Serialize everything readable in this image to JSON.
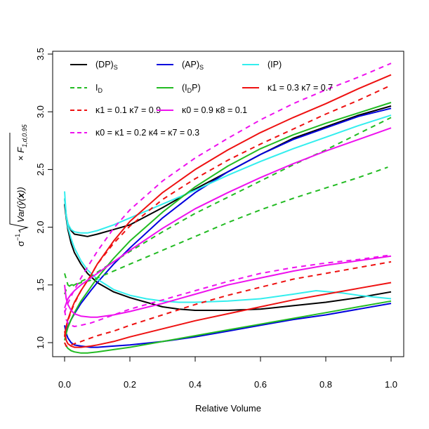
{
  "chart_data": {
    "type": "line",
    "title": "",
    "xlabel": "Relative Volume",
    "ylabel": "σ⁻¹√(Var(ŷ(x)) × F1,d,0.95)",
    "ylabel_parts": {
      "sigma": "σ",
      "sigma_exp": "−1",
      "radicand_a": "Var(",
      "radicand_yhat": "ŷ",
      "radicand_b": "(",
      "radicand_x": "x",
      "radicand_c": "))",
      "times": " × ",
      "F": "F",
      "F_sub": "1,d,0.95"
    },
    "xlim": [
      0,
      1
    ],
    "ylim": [
      1.0,
      3.5
    ],
    "x_ticks": [
      0.0,
      0.2,
      0.4,
      0.6,
      0.8,
      1.0
    ],
    "x_tick_labels": [
      "0.0",
      "0.2",
      "0.4",
      "0.6",
      "0.8",
      "1.0"
    ],
    "y_ticks": [
      1.0,
      1.5,
      2.0,
      2.5,
      3.0,
      3.5
    ],
    "y_tick_labels": [
      "1.0",
      "1.5",
      "2.0",
      "2.5",
      "3.0",
      "3.5"
    ],
    "grid": false,
    "legend_position": "top-left",
    "legend": [
      {
        "key": "dps",
        "main": "(DP)",
        "sub": "S",
        "color": "#000000",
        "dash": false
      },
      {
        "key": "aps",
        "main": "(AP)",
        "sub": "S",
        "color": "#0000dd",
        "dash": false
      },
      {
        "key": "ip",
        "main": "(IP)",
        "sub": "",
        "color": "#33eeee",
        "dash": false
      },
      {
        "key": "id",
        "main": "I",
        "sub": "D",
        "color": "#22bb22",
        "dash": true
      },
      {
        "key": "idp",
        "main": "(I",
        "sub": "D",
        "after": "P)",
        "color": "#22bb22",
        "dash": false
      },
      {
        "key": "k1k7a",
        "main": "κ1 = 0.3 κ7 = 0.7",
        "sub": "",
        "color": "#ee1111",
        "dash": false
      },
      {
        "key": "k1k7b",
        "main": "κ1 = 0.1 κ7 = 0.9",
        "sub": "",
        "color": "#ee1111",
        "dash": true
      },
      {
        "key": "k0k8",
        "main": "κ0 = 0.9 κ8 = 0.1",
        "sub": "",
        "color": "#ee11ee",
        "dash": false
      },
      {
        "key": "k0k1k4k7",
        "main": "κ0 = κ1 = 0.2 κ4 = κ7 = 0.3",
        "sub": "",
        "color": "#ee11ee",
        "dash": true
      }
    ],
    "series": [
      {
        "name": "(DP)S",
        "color": "#000000",
        "dash": false,
        "curves": [
          {
            "x": [
              0.0,
              0.005,
              0.01,
              0.02,
              0.03,
              0.05,
              0.07,
              0.1,
              0.15,
              0.2,
              0.3,
              0.4,
              0.5,
              0.6,
              0.7,
              0.8,
              0.9,
              1.0
            ],
            "y": [
              2.25,
              2.1,
              2.03,
              1.97,
              1.94,
              1.93,
              1.92,
              1.94,
              1.98,
              2.02,
              2.17,
              2.33,
              2.48,
              2.63,
              2.77,
              2.87,
              2.97,
              3.05
            ]
          },
          {
            "x": [
              0.0,
              0.005,
              0.01,
              0.02,
              0.03,
              0.05,
              0.07,
              0.1,
              0.15,
              0.2,
              0.25,
              0.3,
              0.35,
              0.4,
              0.5,
              0.6,
              0.7,
              0.8,
              0.9,
              1.0
            ],
            "y": [
              2.2,
              2.08,
              1.98,
              1.86,
              1.78,
              1.68,
              1.6,
              1.52,
              1.44,
              1.39,
              1.35,
              1.31,
              1.29,
              1.28,
              1.28,
              1.29,
              1.32,
              1.35,
              1.39,
              1.44
            ]
          }
        ]
      },
      {
        "name": "(AP)S",
        "color": "#0000dd",
        "dash": false,
        "curves": [
          {
            "x": [
              0.0,
              0.005,
              0.01,
              0.02,
              0.03,
              0.05,
              0.08,
              0.1,
              0.15,
              0.2,
              0.3,
              0.4,
              0.5,
              0.6,
              0.7,
              0.8,
              0.9,
              1.0
            ],
            "y": [
              1.05,
              1.1,
              1.14,
              1.2,
              1.25,
              1.34,
              1.45,
              1.52,
              1.68,
              1.82,
              2.08,
              2.3,
              2.48,
              2.63,
              2.76,
              2.86,
              2.96,
              3.03
            ]
          },
          {
            "x": [
              0.0,
              0.005,
              0.01,
              0.02,
              0.03,
              0.05,
              0.08,
              0.1,
              0.15,
              0.2,
              0.3,
              0.4,
              0.5,
              0.6,
              0.7,
              0.8,
              0.9,
              1.0
            ],
            "y": [
              1.15,
              1.08,
              1.04,
              1.0,
              0.98,
              0.97,
              0.96,
              0.96,
              0.97,
              0.98,
              1.01,
              1.05,
              1.1,
              1.15,
              1.2,
              1.24,
              1.29,
              1.34
            ]
          }
        ]
      },
      {
        "name": "(IP)",
        "color": "#33eeee",
        "dash": false,
        "curves": [
          {
            "x": [
              0.0,
              0.005,
              0.01,
              0.02,
              0.03,
              0.05,
              0.07,
              0.1,
              0.15,
              0.2,
              0.3,
              0.4,
              0.5,
              0.6,
              0.7,
              0.8,
              0.9,
              1.0
            ],
            "y": [
              2.31,
              2.1,
              2.03,
              1.98,
              1.96,
              1.95,
              1.95,
              1.97,
              2.02,
              2.08,
              2.2,
              2.32,
              2.45,
              2.57,
              2.68,
              2.78,
              2.88,
              2.97
            ]
          },
          {
            "x": [
              0.0,
              0.005,
              0.01,
              0.02,
              0.03,
              0.05,
              0.07,
              0.1,
              0.15,
              0.2,
              0.25,
              0.3,
              0.35,
              0.4,
              0.5,
              0.6,
              0.7,
              0.77,
              0.85,
              0.9,
              1.0
            ],
            "y": [
              2.25,
              2.1,
              2.0,
              1.9,
              1.82,
              1.71,
              1.63,
              1.55,
              1.46,
              1.41,
              1.38,
              1.36,
              1.35,
              1.35,
              1.36,
              1.38,
              1.42,
              1.45,
              1.43,
              1.41,
              1.38
            ]
          }
        ]
      },
      {
        "name": "ID",
        "color": "#22bb22",
        "dash": true,
        "curves": [
          {
            "x": [
              0.0,
              0.01,
              0.02,
              0.03,
              0.05,
              0.08,
              0.1,
              0.15,
              0.2,
              0.3,
              0.4,
              0.5,
              0.6,
              0.7,
              0.8,
              0.9,
              1.0
            ],
            "y": [
              1.6,
              1.5,
              1.48,
              1.5,
              1.53,
              1.57,
              1.61,
              1.7,
              1.79,
              1.96,
              2.12,
              2.26,
              2.4,
              2.54,
              2.67,
              2.81,
              2.95
            ]
          },
          {
            "x": [
              0.0,
              0.005,
              0.01,
              0.02,
              0.03,
              0.05,
              0.08,
              0.1,
              0.15,
              0.2,
              0.3,
              0.4,
              0.5,
              0.6,
              0.7,
              0.8,
              0.9,
              0.99
            ],
            "y": [
              1.42,
              1.46,
              1.48,
              1.5,
              1.5,
              1.52,
              1.54,
              1.56,
              1.62,
              1.68,
              1.8,
              1.92,
              2.04,
              2.15,
              2.25,
              2.34,
              2.43,
              2.52
            ]
          }
        ]
      },
      {
        "name": "(IDP)",
        "color": "#22bb22",
        "dash": false,
        "curves": [
          {
            "x": [
              0.0,
              0.005,
              0.01,
              0.02,
              0.03,
              0.05,
              0.08,
              0.1,
              0.15,
              0.2,
              0.3,
              0.4,
              0.5,
              0.6,
              0.7,
              0.8,
              0.9,
              1.0
            ],
            "y": [
              1.02,
              1.08,
              1.13,
              1.2,
              1.26,
              1.36,
              1.48,
              1.56,
              1.73,
              1.88,
              2.13,
              2.35,
              2.53,
              2.68,
              2.8,
              2.9,
              2.99,
              3.08
            ]
          },
          {
            "x": [
              0.0,
              0.005,
              0.01,
              0.02,
              0.03,
              0.05,
              0.07,
              0.1,
              0.15,
              0.2,
              0.3,
              0.4,
              0.5,
              0.6,
              0.7,
              0.8,
              0.9,
              1.0
            ],
            "y": [
              1.0,
              0.97,
              0.95,
              0.93,
              0.92,
              0.91,
              0.91,
              0.92,
              0.94,
              0.96,
              1.01,
              1.06,
              1.11,
              1.16,
              1.21,
              1.26,
              1.31,
              1.36
            ]
          }
        ]
      },
      {
        "name": "κ1 = 0.3 κ7 = 0.7",
        "color": "#ee1111",
        "dash": false,
        "curves": [
          {
            "x": [
              0.0,
              0.005,
              0.01,
              0.02,
              0.03,
              0.05,
              0.08,
              0.1,
              0.15,
              0.2,
              0.3,
              0.4,
              0.5,
              0.6,
              0.7,
              0.8,
              0.9,
              1.0
            ],
            "y": [
              1.06,
              1.14,
              1.2,
              1.28,
              1.35,
              1.45,
              1.58,
              1.68,
              1.88,
              2.05,
              2.3,
              2.5,
              2.67,
              2.82,
              2.95,
              3.07,
              3.2,
              3.32
            ]
          },
          {
            "x": [
              0.0,
              0.005,
              0.01,
              0.02,
              0.03,
              0.05,
              0.08,
              0.1,
              0.15,
              0.2,
              0.3,
              0.4,
              0.5,
              0.6,
              0.7,
              0.8,
              0.9,
              1.0
            ],
            "y": [
              1.1,
              1.02,
              0.99,
              0.97,
              0.96,
              0.96,
              0.97,
              0.98,
              1.01,
              1.05,
              1.12,
              1.19,
              1.25,
              1.31,
              1.37,
              1.42,
              1.47,
              1.52
            ]
          }
        ]
      },
      {
        "name": "κ1 = 0.1 κ7 = 0.9",
        "color": "#ee1111",
        "dash": true,
        "curves": [
          {
            "x": [
              0.0,
              0.005,
              0.01,
              0.02,
              0.03,
              0.05,
              0.08,
              0.1,
              0.15,
              0.2,
              0.3,
              0.4,
              0.5,
              0.6,
              0.7,
              0.8,
              0.9,
              1.0
            ],
            "y": [
              1.05,
              1.13,
              1.19,
              1.27,
              1.34,
              1.45,
              1.58,
              1.68,
              1.86,
              2.01,
              2.24,
              2.42,
              2.58,
              2.72,
              2.85,
              2.98,
              3.1,
              3.23
            ]
          },
          {
            "x": [
              0.0,
              0.005,
              0.01,
              0.02,
              0.03,
              0.05,
              0.08,
              0.1,
              0.15,
              0.2,
              0.3,
              0.4,
              0.5,
              0.6,
              0.7,
              0.8,
              0.9,
              1.0
            ],
            "y": [
              1.0,
              0.97,
              0.97,
              0.98,
              0.99,
              1.01,
              1.04,
              1.06,
              1.1,
              1.15,
              1.24,
              1.33,
              1.41,
              1.48,
              1.55,
              1.6,
              1.65,
              1.7
            ]
          }
        ]
      },
      {
        "name": "κ0 = 0.9 κ8 = 0.1",
        "color": "#ee11ee",
        "dash": false,
        "curves": [
          {
            "x": [
              0.0,
              0.005,
              0.01,
              0.02,
              0.03,
              0.05,
              0.08,
              0.1,
              0.15,
              0.2,
              0.3,
              0.4,
              0.5,
              0.6,
              0.7,
              0.8,
              0.9,
              1.0
            ],
            "y": [
              1.3,
              1.34,
              1.38,
              1.42,
              1.45,
              1.5,
              1.56,
              1.6,
              1.7,
              1.8,
              1.99,
              2.16,
              2.3,
              2.43,
              2.55,
              2.66,
              2.76,
              2.86
            ]
          },
          {
            "x": [
              0.0,
              0.005,
              0.01,
              0.02,
              0.03,
              0.05,
              0.08,
              0.1,
              0.15,
              0.2,
              0.3,
              0.4,
              0.5,
              0.6,
              0.7,
              0.8,
              0.9,
              1.0
            ],
            "y": [
              1.5,
              1.38,
              1.33,
              1.28,
              1.25,
              1.23,
              1.22,
              1.22,
              1.24,
              1.27,
              1.34,
              1.42,
              1.5,
              1.56,
              1.62,
              1.67,
              1.71,
              1.75
            ]
          }
        ]
      },
      {
        "name": "κ0 = κ1 = 0.2 κ4 = κ7 = 0.3",
        "color": "#ee11ee",
        "dash": true,
        "curves": [
          {
            "x": [
              0.0,
              0.005,
              0.01,
              0.02,
              0.03,
              0.05,
              0.08,
              0.1,
              0.15,
              0.2,
              0.3,
              0.4,
              0.5,
              0.6,
              0.7,
              0.8,
              0.9,
              1.0
            ],
            "y": [
              1.26,
              1.3,
              1.34,
              1.4,
              1.46,
              1.56,
              1.7,
              1.79,
              1.99,
              2.15,
              2.4,
              2.6,
              2.77,
              2.93,
              3.07,
              3.19,
              3.3,
              3.42
            ]
          },
          {
            "x": [
              0.0,
              0.005,
              0.01,
              0.02,
              0.03,
              0.05,
              0.08,
              0.1,
              0.15,
              0.2,
              0.3,
              0.4,
              0.5,
              0.6,
              0.7,
              0.8,
              0.9,
              1.0
            ],
            "y": [
              1.28,
              1.2,
              1.17,
              1.15,
              1.14,
              1.15,
              1.17,
              1.19,
              1.24,
              1.29,
              1.37,
              1.45,
              1.53,
              1.6,
              1.65,
              1.69,
              1.72,
              1.76
            ]
          }
        ]
      }
    ]
  }
}
